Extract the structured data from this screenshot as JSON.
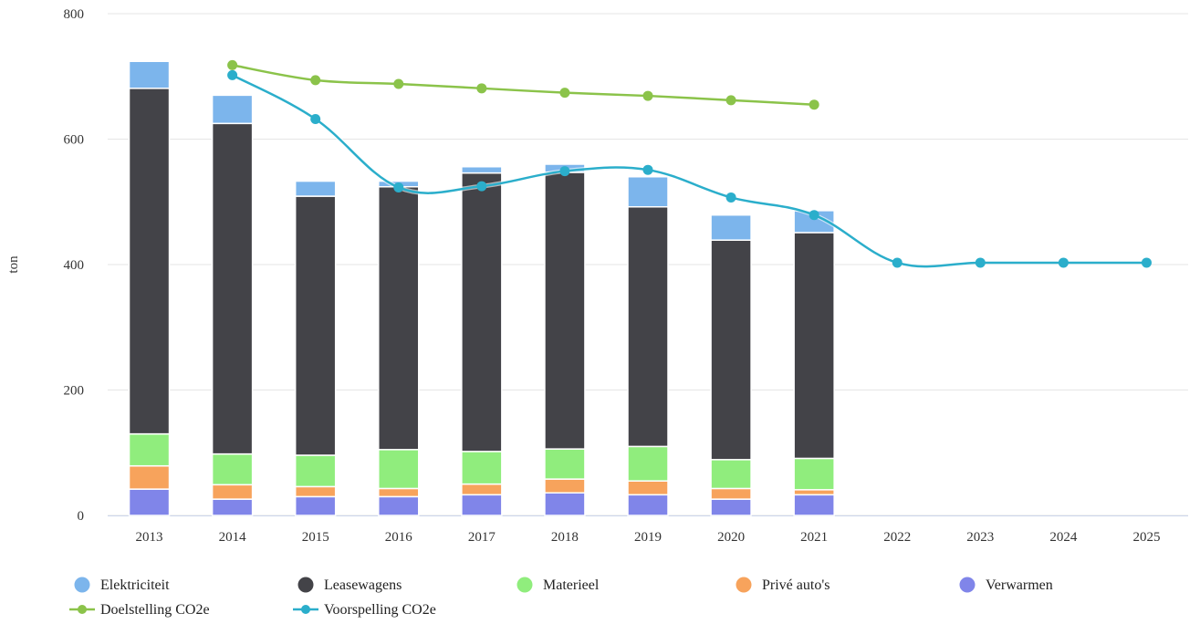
{
  "chart_data": {
    "type": "bar",
    "stacked": true,
    "title": "",
    "xlabel": "",
    "ylabel": "ton",
    "ylim": [
      0,
      800
    ],
    "yticks": [
      0,
      200,
      400,
      600,
      800
    ],
    "grid": true,
    "legend_position": "bottom",
    "categories": [
      "2013",
      "2014",
      "2015",
      "2016",
      "2017",
      "2018",
      "2019",
      "2020",
      "2021",
      "2022",
      "2023",
      "2024",
      "2025"
    ],
    "series": [
      {
        "name": "Verwarmen",
        "color": "#8085e9",
        "type": "bar",
        "values": [
          42,
          26,
          30,
          30,
          33,
          36,
          33,
          26,
          33,
          null,
          null,
          null,
          null
        ]
      },
      {
        "name": "Privé auto's",
        "color": "#f7a35c",
        "type": "bar",
        "values": [
          37,
          23,
          16,
          13,
          17,
          22,
          22,
          17,
          8,
          null,
          null,
          null,
          null
        ]
      },
      {
        "name": "Materieel",
        "color": "#90ed7d",
        "type": "bar",
        "values": [
          51,
          49,
          50,
          62,
          52,
          48,
          55,
          46,
          50,
          null,
          null,
          null,
          null
        ]
      },
      {
        "name": "Leasewagens",
        "color": "#434348",
        "type": "bar",
        "values": [
          551,
          527,
          413,
          419,
          444,
          441,
          382,
          350,
          360,
          null,
          null,
          null,
          null
        ]
      },
      {
        "name": "Elektriciteit",
        "color": "#7cb5ec",
        "type": "bar",
        "values": [
          43,
          45,
          24,
          9,
          10,
          13,
          48,
          40,
          35,
          null,
          null,
          null,
          null
        ]
      },
      {
        "name": "Doelstelling CO2e",
        "color": "#8bc34a",
        "type": "line",
        "values": [
          null,
          718,
          694,
          688,
          681,
          674,
          669,
          662,
          655,
          null,
          null,
          null,
          null
        ]
      },
      {
        "name": "Voorspelling CO2e",
        "color": "#2baecb",
        "type": "line",
        "values": [
          null,
          702,
          632,
          523,
          525,
          549,
          551,
          507,
          479,
          403,
          403,
          403,
          403
        ]
      }
    ],
    "legend": [
      "Elektriciteit",
      "Leasewagens",
      "Materieel",
      "Privé auto's",
      "Verwarmen",
      "Doelstelling CO2e",
      "Voorspelling CO2e"
    ]
  }
}
